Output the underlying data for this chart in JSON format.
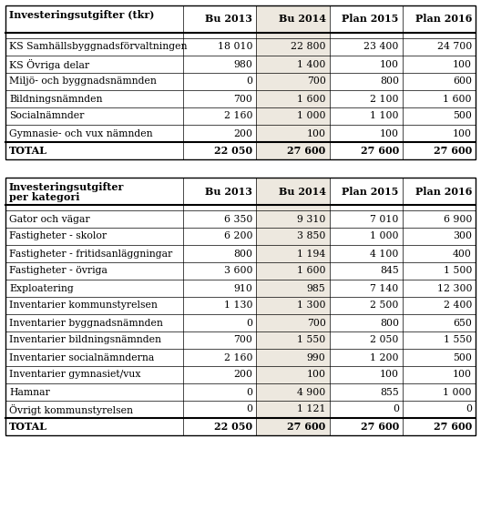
{
  "table1_title": "Investeringsutgifter (tkr)",
  "table1_headers": [
    "Bu 2013",
    "Bu 2014",
    "Plan 2015",
    "Plan 2016"
  ],
  "table1_rows": [
    [
      "KS Samhällsbyggnadsförvaltningen",
      "18 010",
      "22 800",
      "23 400",
      "24 700"
    ],
    [
      "KS Övriga delar",
      "980",
      "1 400",
      "100",
      "100"
    ],
    [
      "Miljö- och byggnadsnämnden",
      "0",
      "700",
      "800",
      "600"
    ],
    [
      "Bildningsnämnden",
      "700",
      "1 600",
      "2 100",
      "1 600"
    ],
    [
      "Socialnämnder",
      "2 160",
      "1 000",
      "1 100",
      "500"
    ],
    [
      "Gymnasie- och vux nämnden",
      "200",
      "100",
      "100",
      "100"
    ]
  ],
  "table1_total": [
    "TOTAL",
    "22 050",
    "27 600",
    "27 600",
    "27 600"
  ],
  "table2_title1": "Investeringsutgifter",
  "table2_title2": "per kategori",
  "table2_headers": [
    "Bu 2013",
    "Bu 2014",
    "Plan 2015",
    "Plan 2016"
  ],
  "table2_rows": [
    [
      "Gator och vägar",
      "6 350",
      "9 310",
      "7 010",
      "6 900"
    ],
    [
      "Fastigheter - skolor",
      "6 200",
      "3 850",
      "1 000",
      "300"
    ],
    [
      "Fastigheter - fritidsanläggningar",
      "800",
      "1 194",
      "4 100",
      "400"
    ],
    [
      "Fastigheter - övriga",
      "3 600",
      "1 600",
      "845",
      "1 500"
    ],
    [
      "Exploatering",
      "910",
      "985",
      "7 140",
      "12 300"
    ],
    [
      "Inventarier kommunstyrelsen",
      "1 130",
      "1 300",
      "2 500",
      "2 400"
    ],
    [
      "Inventarier byggnadsnämnden",
      "0",
      "700",
      "800",
      "650"
    ],
    [
      "Inventarier bildningsnämnden",
      "700",
      "1 550",
      "2 050",
      "1 550"
    ],
    [
      "Inventarier socialnämnderna",
      "2 160",
      "990",
      "1 200",
      "500"
    ],
    [
      "Inventarier gymnasiet/vux",
      "200",
      "100",
      "100",
      "100"
    ],
    [
      "Hamnar",
      "0",
      "4 900",
      "855",
      "1 000"
    ],
    [
      "Övrigt kommunstyrelsen",
      "0",
      "1 121",
      "0",
      "0"
    ]
  ],
  "table2_total": [
    "TOTAL",
    "22 050",
    "27 600",
    "27 600",
    "27 600"
  ],
  "highlight_color": "#ede8df",
  "bg_color": "#ffffff",
  "border_color": "#000000",
  "text_color": "#000000",
  "fig_width": 5.28,
  "fig_height": 5.71,
  "dpi": 100
}
